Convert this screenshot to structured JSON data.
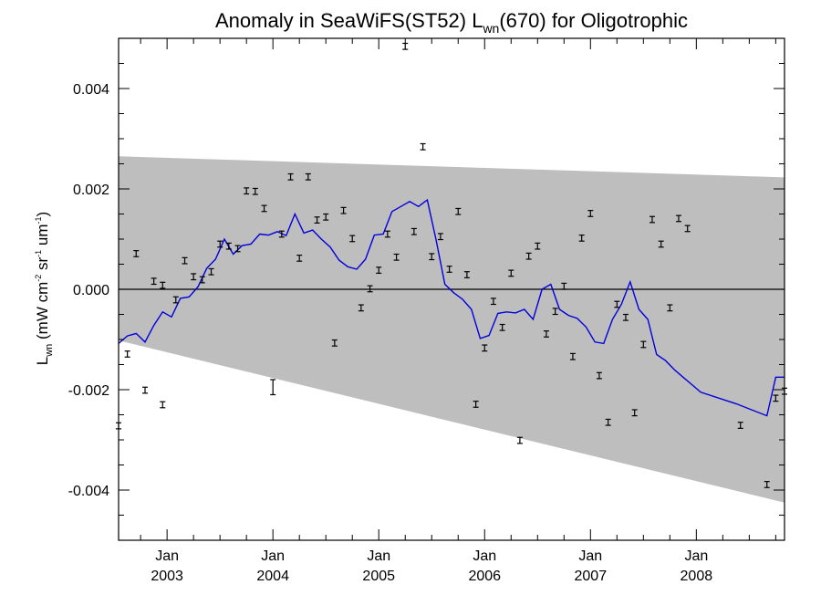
{
  "chart_data": {
    "type": "scatter",
    "title": {
      "pre": "Anomaly in SeaWiFS(ST52) L",
      "sub": "wn",
      "post": "(670) for Oligotrophic"
    },
    "ylabel": {
      "pre": "L",
      "sub": "wn",
      "mid": " (mW cm",
      "sup1": "-2",
      "mid2": " sr",
      "sup2": "-1",
      "mid3": " um",
      "sup3": "-1",
      "post": ")"
    },
    "x_range": [
      2002.542,
      2008.833
    ],
    "ylim": [
      -0.005,
      0.005
    ],
    "y_tick_values": [
      -0.004,
      -0.002,
      0.0,
      0.002,
      0.004
    ],
    "y_tick_labels": [
      "-0.004",
      "-0.002",
      "0.000",
      "0.002",
      "0.004"
    ],
    "x_ticks": [
      {
        "x": 2003.0,
        "month": "Jan",
        "year": "2003"
      },
      {
        "x": 2004.0,
        "month": "Jan",
        "year": "2004"
      },
      {
        "x": 2005.0,
        "month": "Jan",
        "year": "2005"
      },
      {
        "x": 2006.0,
        "month": "Jan",
        "year": "2006"
      },
      {
        "x": 2007.0,
        "month": "Jan",
        "year": "2007"
      },
      {
        "x": 2008.0,
        "month": "Jan",
        "year": "2008"
      }
    ],
    "zero_line": 0.0,
    "envelope": {
      "x": [
        2002.542,
        2008.833
      ],
      "upper": [
        0.00265,
        0.00223
      ],
      "lower": [
        -0.00102,
        -0.00425
      ],
      "color": "#bebebe"
    },
    "series": [
      {
        "type": "errorbar",
        "color": "#000000",
        "points": [
          {
            "x": 2002.542,
            "y": -0.00272,
            "err": 6e-05
          },
          {
            "x": 2002.625,
            "y": -0.00129,
            "err": 6e-05
          },
          {
            "x": 2002.708,
            "y": 0.00071,
            "err": 6e-05
          },
          {
            "x": 2002.792,
            "y": -0.00201,
            "err": 6e-05
          },
          {
            "x": 2002.875,
            "y": 0.00016,
            "err": 6e-05
          },
          {
            "x": 2002.958,
            "y": 8e-05,
            "err": 6e-05
          },
          {
            "x": 2002.958,
            "y": -0.0023,
            "err": 6e-05
          },
          {
            "x": 2003.083,
            "y": -0.00021,
            "err": 6e-05
          },
          {
            "x": 2003.167,
            "y": 0.00057,
            "err": 6e-05
          },
          {
            "x": 2003.25,
            "y": 0.00025,
            "err": 6e-05
          },
          {
            "x": 2003.333,
            "y": 0.00019,
            "err": 6e-05
          },
          {
            "x": 2003.417,
            "y": 0.00035,
            "err": 6e-05
          },
          {
            "x": 2003.5,
            "y": 0.0009,
            "err": 6e-05
          },
          {
            "x": 2003.583,
            "y": 0.00086,
            "err": 6e-05
          },
          {
            "x": 2003.667,
            "y": 0.00081,
            "err": 6e-05
          },
          {
            "x": 2003.75,
            "y": 0.00196,
            "err": 6e-05
          },
          {
            "x": 2003.833,
            "y": 0.00195,
            "err": 6e-05
          },
          {
            "x": 2003.917,
            "y": 0.00161,
            "err": 6e-05
          },
          {
            "x": 2004.0,
            "y": -0.00195,
            "err": 0.00015
          },
          {
            "x": 2004.083,
            "y": 0.0011,
            "err": 6e-05
          },
          {
            "x": 2004.167,
            "y": 0.00224,
            "err": 6e-05
          },
          {
            "x": 2004.25,
            "y": 0.00062,
            "err": 6e-05
          },
          {
            "x": 2004.333,
            "y": 0.00224,
            "err": 6e-05
          },
          {
            "x": 2004.417,
            "y": 0.00138,
            "err": 6e-05
          },
          {
            "x": 2004.5,
            "y": 0.00144,
            "err": 6e-05
          },
          {
            "x": 2004.583,
            "y": -0.00107,
            "err": 6e-05
          },
          {
            "x": 2004.667,
            "y": 0.00157,
            "err": 6e-05
          },
          {
            "x": 2004.75,
            "y": 0.00101,
            "err": 6e-05
          },
          {
            "x": 2004.833,
            "y": -0.00037,
            "err": 6e-05
          },
          {
            "x": 2004.917,
            "y": 1e-05,
            "err": 6e-05
          },
          {
            "x": 2005.0,
            "y": 0.00038,
            "err": 6e-05
          },
          {
            "x": 2005.083,
            "y": 0.0011,
            "err": 6e-05
          },
          {
            "x": 2005.167,
            "y": 0.00064,
            "err": 6e-05
          },
          {
            "x": 2005.25,
            "y": 0.00484,
            "err": 6e-05
          },
          {
            "x": 2005.333,
            "y": 0.00115,
            "err": 6e-05
          },
          {
            "x": 2005.417,
            "y": 0.00284,
            "err": 6e-05
          },
          {
            "x": 2005.5,
            "y": 0.00065,
            "err": 6e-05
          },
          {
            "x": 2005.583,
            "y": 0.00105,
            "err": 6e-05
          },
          {
            "x": 2005.667,
            "y": 0.0004,
            "err": 6e-05
          },
          {
            "x": 2005.75,
            "y": 0.00155,
            "err": 6e-05
          },
          {
            "x": 2005.833,
            "y": 0.00029,
            "err": 6e-05
          },
          {
            "x": 2005.917,
            "y": -0.00229,
            "err": 6e-05
          },
          {
            "x": 2006.0,
            "y": -0.00117,
            "err": 6e-05
          },
          {
            "x": 2006.083,
            "y": -0.00024,
            "err": 6e-05
          },
          {
            "x": 2006.167,
            "y": -0.00076,
            "err": 6e-05
          },
          {
            "x": 2006.25,
            "y": 0.00032,
            "err": 6e-05
          },
          {
            "x": 2006.333,
            "y": -0.00301,
            "err": 6e-05
          },
          {
            "x": 2006.417,
            "y": 0.00066,
            "err": 6e-05
          },
          {
            "x": 2006.5,
            "y": 0.00086,
            "err": 6e-05
          },
          {
            "x": 2006.583,
            "y": -0.00089,
            "err": 6e-05
          },
          {
            "x": 2006.667,
            "y": -0.00044,
            "err": 6e-05
          },
          {
            "x": 2006.75,
            "y": 6e-05,
            "err": 6e-05
          },
          {
            "x": 2006.833,
            "y": -0.00134,
            "err": 6e-05
          },
          {
            "x": 2006.917,
            "y": 0.00102,
            "err": 6e-05
          },
          {
            "x": 2007.0,
            "y": 0.00151,
            "err": 6e-05
          },
          {
            "x": 2007.083,
            "y": -0.00172,
            "err": 6e-05
          },
          {
            "x": 2007.167,
            "y": -0.00265,
            "err": 6e-05
          },
          {
            "x": 2007.25,
            "y": -0.0003,
            "err": 6e-05
          },
          {
            "x": 2007.333,
            "y": -0.00056,
            "err": 6e-05
          },
          {
            "x": 2007.417,
            "y": -0.00246,
            "err": 6e-05
          },
          {
            "x": 2007.5,
            "y": -0.0011,
            "err": 6e-05
          },
          {
            "x": 2007.583,
            "y": 0.00139,
            "err": 6e-05
          },
          {
            "x": 2007.667,
            "y": 0.0009,
            "err": 6e-05
          },
          {
            "x": 2007.75,
            "y": -0.00037,
            "err": 6e-05
          },
          {
            "x": 2007.833,
            "y": 0.00141,
            "err": 6e-05
          },
          {
            "x": 2007.917,
            "y": 0.00121,
            "err": 6e-05
          },
          {
            "x": 2008.417,
            "y": -0.00271,
            "err": 6e-05
          },
          {
            "x": 2008.667,
            "y": -0.00389,
            "err": 6e-05
          },
          {
            "x": 2008.75,
            "y": -0.00217,
            "err": 6e-05
          },
          {
            "x": 2008.833,
            "y": -0.00203,
            "err": 6e-05
          }
        ]
      },
      {
        "type": "line",
        "color": "#0000dd",
        "x": [
          2002.542,
          2002.625,
          2002.708,
          2002.792,
          2002.875,
          2002.958,
          2003.042,
          2003.125,
          2003.208,
          2003.292,
          2003.375,
          2003.458,
          2003.542,
          2003.625,
          2003.708,
          2003.792,
          2003.875,
          2003.958,
          2004.042,
          2004.125,
          2004.208,
          2004.292,
          2004.375,
          2004.458,
          2004.542,
          2004.625,
          2004.708,
          2004.792,
          2004.875,
          2004.958,
          2005.042,
          2005.125,
          2005.208,
          2005.292,
          2005.375,
          2005.458,
          2005.542,
          2005.625,
          2005.708,
          2005.792,
          2005.875,
          2005.958,
          2006.042,
          2006.125,
          2006.208,
          2006.292,
          2006.375,
          2006.458,
          2006.542,
          2006.625,
          2006.708,
          2006.792,
          2006.875,
          2006.958,
          2007.042,
          2007.125,
          2007.208,
          2007.292,
          2007.375,
          2007.458,
          2007.542,
          2007.625,
          2007.708,
          2007.792,
          2007.875,
          2007.958,
          2008.042,
          2008.375,
          2008.667,
          2008.75,
          2008.833
        ],
        "y": [
          -0.00108,
          -0.00093,
          -0.00088,
          -0.00105,
          -0.00072,
          -0.00045,
          -0.00055,
          -0.00018,
          -0.00015,
          5e-05,
          0.00042,
          0.0006,
          0.001,
          0.0007,
          0.00087,
          0.0009,
          0.0011,
          0.00108,
          0.00115,
          0.00107,
          0.0015,
          0.00112,
          0.00118,
          0.001,
          0.00084,
          0.00058,
          0.00045,
          0.0004,
          0.0006,
          0.00108,
          0.0011,
          0.00155,
          0.00165,
          0.00175,
          0.00165,
          0.00178,
          0.00098,
          0.0001,
          -7e-05,
          -0.0002,
          -0.0004,
          -0.00098,
          -0.00092,
          -0.00048,
          -0.00045,
          -0.00047,
          -0.0004,
          -0.0006,
          0.0,
          0.0001,
          -0.0004,
          -0.00052,
          -0.00058,
          -0.00075,
          -0.00105,
          -0.00108,
          -0.0006,
          -0.0003,
          0.00015,
          -0.0004,
          -0.0006,
          -0.0013,
          -0.00142,
          -0.0016,
          -0.00175,
          -0.0019,
          -0.00205,
          -0.00228,
          -0.00252,
          -0.00175,
          -0.00175
        ]
      }
    ],
    "grid": false,
    "legend": "none"
  }
}
